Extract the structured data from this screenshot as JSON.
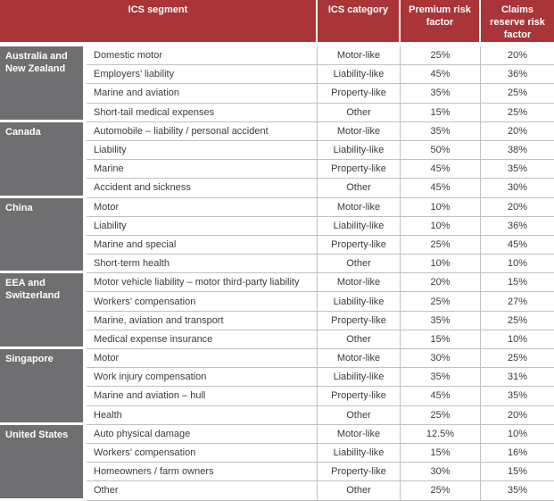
{
  "colors": {
    "header_bg": "#A93539",
    "region_bg": "#6F6F71",
    "row_border": "#C1C1C1",
    "body_text": "#3C3C3C",
    "header_text": "#FFFFFF"
  },
  "table": {
    "headers": [
      "ICS segment",
      "ICS category",
      "Premium risk factor",
      "Claims reserve risk factor"
    ],
    "groups": [
      {
        "region": "Australia and New Zealand",
        "rows": [
          {
            "segment": "Domestic motor",
            "category": "Motor-like",
            "premium": "25%",
            "claims": "20%"
          },
          {
            "segment": "Employers’ liability",
            "category": "Liability-like",
            "premium": "45%",
            "claims": "36%"
          },
          {
            "segment": "Marine and aviation",
            "category": "Property-like",
            "premium": "35%",
            "claims": "25%"
          },
          {
            "segment": "Short-tail medical expenses",
            "category": "Other",
            "premium": "15%",
            "claims": "25%"
          }
        ]
      },
      {
        "region": "Canada",
        "rows": [
          {
            "segment": "Automobile – liability / personal accident",
            "category": "Motor-like",
            "premium": "35%",
            "claims": "20%"
          },
          {
            "segment": "Liability",
            "category": "Liability-like",
            "premium": "50%",
            "claims": "38%"
          },
          {
            "segment": "Marine",
            "category": "Property-like",
            "premium": "45%",
            "claims": "35%"
          },
          {
            "segment": "Accident and sickness",
            "category": "Other",
            "premium": "45%",
            "claims": "30%"
          }
        ]
      },
      {
        "region": "China",
        "rows": [
          {
            "segment": "Motor",
            "category": "Motor-like",
            "premium": "10%",
            "claims": "20%"
          },
          {
            "segment": "Liability",
            "category": "Liability-like",
            "premium": "10%",
            "claims": "36%"
          },
          {
            "segment": "Marine and special",
            "category": "Property-like",
            "premium": "25%",
            "claims": "45%"
          },
          {
            "segment": "Short-term health",
            "category": "Other",
            "premium": "10%",
            "claims": "10%"
          }
        ]
      },
      {
        "region": "EEA and Switzerland",
        "rows": [
          {
            "segment": "Motor vehicle liability – motor third-party liability",
            "category": "Motor-like",
            "premium": "20%",
            "claims": "15%"
          },
          {
            "segment": "Workers’ compensation",
            "category": "Liability-like",
            "premium": "25%",
            "claims": "27%"
          },
          {
            "segment": "Marine, aviation and transport",
            "category": "Property-like",
            "premium": "35%",
            "claims": "25%"
          },
          {
            "segment": "Medical expense insurance",
            "category": "Other",
            "premium": "15%",
            "claims": "10%"
          }
        ]
      },
      {
        "region": "Singapore",
        "rows": [
          {
            "segment": "Motor",
            "category": "Motor-like",
            "premium": "30%",
            "claims": "25%"
          },
          {
            "segment": "Work injury compensation",
            "category": "Liability-like",
            "premium": "35%",
            "claims": "31%"
          },
          {
            "segment": "Marine and aviation – hull",
            "category": "Property-like",
            "premium": "45%",
            "claims": "35%"
          },
          {
            "segment": "Health",
            "category": "Other",
            "premium": "25%",
            "claims": "20%"
          }
        ]
      },
      {
        "region": "United States",
        "rows": [
          {
            "segment": "Auto physical damage",
            "category": "Motor-like",
            "premium": "12.5%",
            "claims": "10%"
          },
          {
            "segment": "Workers’ compensation",
            "category": "Liability-like",
            "premium": "15%",
            "claims": "16%"
          },
          {
            "segment": "Homeowners / farm owners",
            "category": "Property-like",
            "premium": "30%",
            "claims": "15%"
          },
          {
            "segment": "Other",
            "category": "Other",
            "premium": "25%",
            "claims": "35%"
          }
        ]
      }
    ]
  }
}
